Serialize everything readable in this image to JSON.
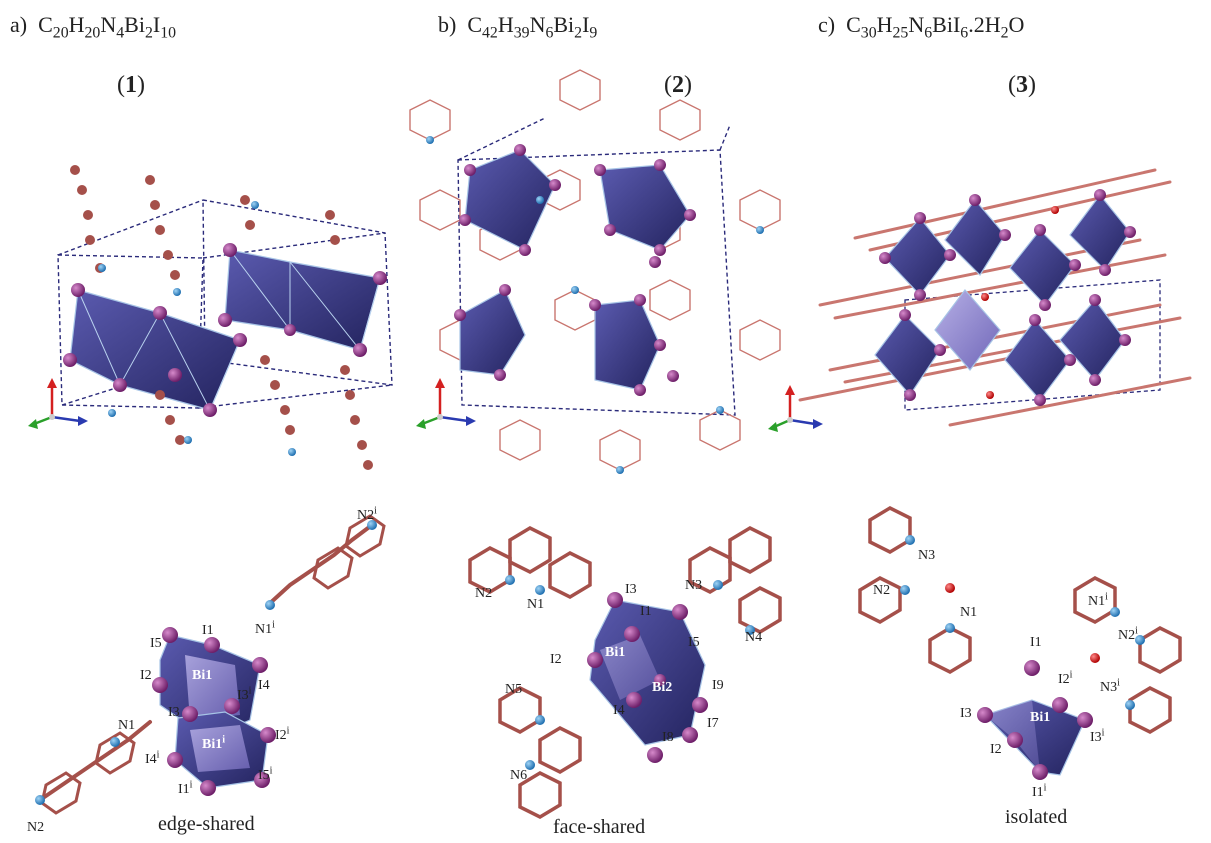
{
  "panels": [
    {
      "letter": "a)",
      "formula_parts": [
        "C",
        "20",
        "H",
        "20",
        "N",
        "4",
        "Bi",
        "2",
        "I",
        "10"
      ],
      "compound": "1",
      "caption": "edge-shared",
      "atom_labels": [
        {
          "base": "N2",
          "sup": "i"
        },
        {
          "base": "N1",
          "sup": "i"
        },
        {
          "base": "I1",
          "sup": ""
        },
        {
          "base": "I5",
          "sup": ""
        },
        {
          "base": "I2",
          "sup": ""
        },
        {
          "base": "I4",
          "sup": ""
        },
        {
          "base": "Bi1",
          "sup": ""
        },
        {
          "base": "I3",
          "sup": "i"
        },
        {
          "base": "I3",
          "sup": ""
        },
        {
          "base": "I2",
          "sup": "i"
        },
        {
          "base": "I4",
          "sup": "i"
        },
        {
          "base": "Bi1",
          "sup": "i"
        },
        {
          "base": "I1",
          "sup": "i"
        },
        {
          "base": "I5",
          "sup": "i"
        },
        {
          "base": "N1",
          "sup": ""
        },
        {
          "base": "N2",
          "sup": ""
        }
      ]
    },
    {
      "letter": "b)",
      "formula_parts": [
        "C",
        "42",
        "H",
        "39",
        "N",
        "6",
        "Bi",
        "2",
        "I",
        "9"
      ],
      "compound": "2",
      "caption": "face-shared",
      "atom_labels": [
        {
          "base": "I3",
          "sup": ""
        },
        {
          "base": "I1",
          "sup": ""
        },
        {
          "base": "N3",
          "sup": ""
        },
        {
          "base": "N2",
          "sup": ""
        },
        {
          "base": "N1",
          "sup": ""
        },
        {
          "base": "I5",
          "sup": ""
        },
        {
          "base": "N4",
          "sup": ""
        },
        {
          "base": "I2",
          "sup": ""
        },
        {
          "base": "Bi1",
          "sup": ""
        },
        {
          "base": "Bi2",
          "sup": ""
        },
        {
          "base": "I9",
          "sup": ""
        },
        {
          "base": "N5",
          "sup": ""
        },
        {
          "base": "I4",
          "sup": ""
        },
        {
          "base": "I7",
          "sup": ""
        },
        {
          "base": "I8",
          "sup": ""
        },
        {
          "base": "N6",
          "sup": ""
        }
      ]
    },
    {
      "letter": "c)",
      "formula_parts": [
        "C",
        "30",
        "H",
        "25",
        "N",
        "6",
        "Bi",
        "",
        "I",
        "6",
        ".2H",
        "2",
        "O",
        ""
      ],
      "compound": "3",
      "caption": "isolated",
      "atom_labels": [
        {
          "base": "N3",
          "sup": ""
        },
        {
          "base": "N2",
          "sup": ""
        },
        {
          "base": "N1",
          "sup": ""
        },
        {
          "base": "N1",
          "sup": "i"
        },
        {
          "base": "N2",
          "sup": "i"
        },
        {
          "base": "I1",
          "sup": ""
        },
        {
          "base": "I2",
          "sup": "i"
        },
        {
          "base": "N3",
          "sup": "i"
        },
        {
          "base": "I3",
          "sup": ""
        },
        {
          "base": "Bi1",
          "sup": ""
        },
        {
          "base": "I3",
          "sup": "i"
        },
        {
          "base": "I2",
          "sup": ""
        },
        {
          "base": "I1",
          "sup": "i"
        }
      ]
    }
  ],
  "colors": {
    "octahedron": "#3a3a8c",
    "octahedron_light": "#8f86cc",
    "iodine": "#8e2f86",
    "nitrogen": "#2f8fd0",
    "carbon": "#a5504a",
    "hydrogen": "#f0c8c0",
    "oxygen": "#e02020",
    "cell": "#2a2a7a"
  }
}
